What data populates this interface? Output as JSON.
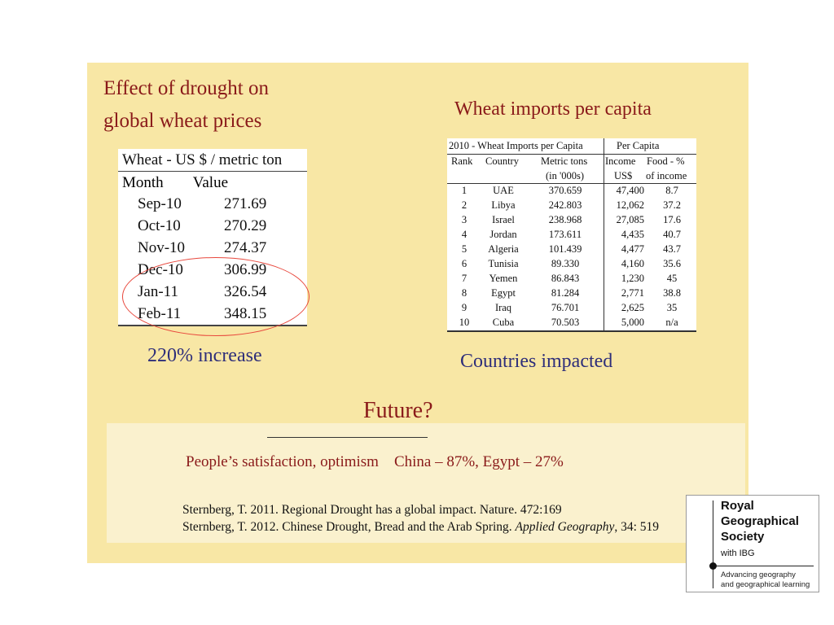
{
  "left": {
    "title_line1": "Effect of drought on",
    "title_line2": "global wheat prices",
    "table_header": "Wheat - US $ / metric ton",
    "col_month": "Month",
    "col_value": "Value",
    "rows": [
      {
        "month": "Sep-10",
        "value": "271.69"
      },
      {
        "month": "Oct-10",
        "value": "270.29"
      },
      {
        "month": "Nov-10",
        "value": "274.37"
      },
      {
        "month": "Dec-10",
        "value": "306.99"
      },
      {
        "month": "Jan-11",
        "value": "326.54"
      },
      {
        "month": "Feb-11",
        "value": "348.15"
      }
    ],
    "caption": "220% increase"
  },
  "right": {
    "title": "Wheat imports per capita",
    "table_header_left": "2010 - Wheat Imports per Capita",
    "table_header_right": "Per Capita",
    "sub_rank": "Rank",
    "sub_country": "Country",
    "sub_tons_1": "Metric tons",
    "sub_tons_2": "(in '000s)",
    "sub_income_1": "Income",
    "sub_income_2": "US$",
    "sub_food_1": "Food - %",
    "sub_food_2": "of income",
    "rows": [
      {
        "rank": "1",
        "country": "UAE",
        "tons": "370.659",
        "income": "47,400",
        "food": "8.7"
      },
      {
        "rank": "2",
        "country": "Libya",
        "tons": "242.803",
        "income": "12,062",
        "food": "37.2"
      },
      {
        "rank": "3",
        "country": "Israel",
        "tons": "238.968",
        "income": "27,085",
        "food": "17.6"
      },
      {
        "rank": "4",
        "country": "Jordan",
        "tons": "173.611",
        "income": "4,435",
        "food": "40.7"
      },
      {
        "rank": "5",
        "country": "Algeria",
        "tons": "101.439",
        "income": "4,477",
        "food": "43.7"
      },
      {
        "rank": "6",
        "country": "Tunisia",
        "tons": "89.330",
        "income": "4,160",
        "food": "35.6"
      },
      {
        "rank": "7",
        "country": "Yemen",
        "tons": "86.843",
        "income": "1,230",
        "food": "45"
      },
      {
        "rank": "8",
        "country": "Egypt",
        "tons": "81.284",
        "income": "2,771",
        "food": "38.8"
      },
      {
        "rank": "9",
        "country": "Iraq",
        "tons": "76.701",
        "income": "2,625",
        "food": "35"
      },
      {
        "rank": "10",
        "country": "Cuba",
        "tons": "70.503",
        "income": "5,000",
        "food": "n/a"
      }
    ],
    "caption": "Countries impacted"
  },
  "future": {
    "title": "Future?",
    "satisfaction": "People’s satisfaction, optimism    China – 87%, Egypt – 27%",
    "ref1": "Sternberg, T. 2011. Regional Drought has a global impact. Nature. 472:169",
    "ref2_pre": "Sternberg, T. 2012. Chinese Drought, Bread and the Arab Spring. ",
    "ref2_journal": "Applied Geography",
    "ref2_post": ", 34: 519"
  },
  "logo": {
    "line1": "Royal",
    "line2": "Geographical",
    "line3": "Society",
    "with": "with IBG",
    "tag1": "Advancing geography",
    "tag2": "and geographical learning"
  },
  "colors": {
    "slide_bg": "#f8e7a5",
    "title_red": "#8a1a1a",
    "caption_blue": "#2e2e7a",
    "ellipse": "#e8483d"
  }
}
